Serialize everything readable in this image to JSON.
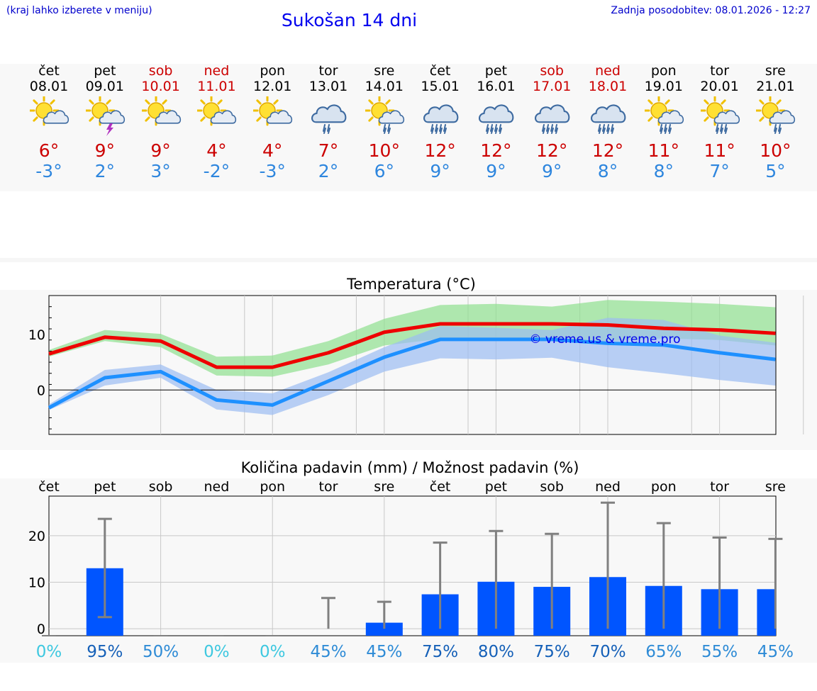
{
  "header": {
    "hint": "(kraj lahko izberete v meniju)",
    "title": "Sukošan 14 dni",
    "updated": "Zadnja posodobitev: 08.01.2026 - 12:27"
  },
  "forecast": [
    {
      "day": "čet",
      "date": "08.01",
      "weekend": false,
      "icon": "sun-cloud-icon",
      "max": "6°",
      "min": "-3°"
    },
    {
      "day": "pet",
      "date": "09.01",
      "weekend": false,
      "icon": "sun-cloud-thunder-icon",
      "max": "9°",
      "min": "2°"
    },
    {
      "day": "sob",
      "date": "10.01",
      "weekend": true,
      "icon": "sun-cloud-icon",
      "max": "9°",
      "min": "3°"
    },
    {
      "day": "ned",
      "date": "11.01",
      "weekend": true,
      "icon": "sun-cloud-icon",
      "max": "4°",
      "min": "-2°"
    },
    {
      "day": "pon",
      "date": "12.01",
      "weekend": false,
      "icon": "sun-cloud-icon",
      "max": "4°",
      "min": "-3°"
    },
    {
      "day": "tor",
      "date": "13.01",
      "weekend": false,
      "icon": "cloud-rain-icon",
      "max": "7°",
      "min": "2°"
    },
    {
      "day": "sre",
      "date": "14.01",
      "weekend": false,
      "icon": "sun-cloud-rain-icon",
      "max": "10°",
      "min": "6°"
    },
    {
      "day": "čet",
      "date": "15.01",
      "weekend": false,
      "icon": "cloud-heavy-rain-icon",
      "max": "12°",
      "min": "9°"
    },
    {
      "day": "pet",
      "date": "16.01",
      "weekend": false,
      "icon": "cloud-heavy-rain-icon",
      "max": "12°",
      "min": "9°"
    },
    {
      "day": "sob",
      "date": "17.01",
      "weekend": true,
      "icon": "cloud-heavy-rain-icon",
      "max": "12°",
      "min": "9°"
    },
    {
      "day": "ned",
      "date": "18.01",
      "weekend": true,
      "icon": "cloud-heavy-rain-icon",
      "max": "12°",
      "min": "8°"
    },
    {
      "day": "pon",
      "date": "19.01",
      "weekend": false,
      "icon": "sun-cloud-heavy-rain-icon",
      "max": "11°",
      "min": "8°"
    },
    {
      "day": "tor",
      "date": "20.01",
      "weekend": false,
      "icon": "sun-cloud-heavy-rain-icon",
      "max": "11°",
      "min": "7°"
    },
    {
      "day": "sre",
      "date": "21.01",
      "weekend": false,
      "icon": "sun-cloud-rain-icon",
      "max": "10°",
      "min": "5°"
    }
  ],
  "chart_data": [
    {
      "type": "line",
      "title": "Temperatura (°C)",
      "xlabel": "",
      "ylabel": "",
      "ylim": [
        -8,
        17
      ],
      "yticks": [
        0,
        10
      ],
      "x": [
        0,
        1,
        2,
        3,
        4,
        5,
        6,
        7,
        8,
        9,
        10,
        11,
        12,
        13
      ],
      "watermark": "© vreme.us & vreme.pro",
      "series": [
        {
          "name": "max",
          "color": "#ee0000",
          "values": [
            6.5,
            9.5,
            8.8,
            4.1,
            4.1,
            6.7,
            10.4,
            11.9,
            11.9,
            11.9,
            11.7,
            11.1,
            10.8,
            10.2
          ]
        },
        {
          "name": "min",
          "color": "#1e90ff",
          "values": [
            -3.2,
            2.2,
            3.3,
            -1.8,
            -2.7,
            1.6,
            5.9,
            9.1,
            9.1,
            9.1,
            8.4,
            8.1,
            6.7,
            5.5
          ]
        }
      ],
      "bands": [
        {
          "name": "max-range",
          "color": "#8ee08e",
          "low": [
            6.0,
            8.8,
            7.7,
            2.6,
            2.4,
            4.6,
            8.0,
            9.2,
            9.0,
            9.2,
            8.8,
            9.3,
            9.0,
            8.0
          ],
          "high": [
            7.2,
            10.8,
            10.1,
            6.0,
            6.2,
            8.8,
            12.8,
            15.3,
            15.5,
            15.0,
            16.2,
            15.9,
            15.5,
            14.9
          ]
        },
        {
          "name": "min-range",
          "color": "#9bbcf2",
          "low": [
            -3.6,
            0.8,
            2.2,
            -3.5,
            -4.5,
            -0.9,
            3.3,
            5.7,
            5.5,
            5.8,
            4.1,
            3.0,
            1.8,
            0.8
          ],
          "high": [
            -2.6,
            3.6,
            4.6,
            0.0,
            -0.6,
            3.2,
            7.7,
            11.5,
            11.2,
            10.8,
            13.0,
            12.6,
            9.8,
            8.5
          ]
        }
      ]
    },
    {
      "type": "bar",
      "title": "Količina padavin (mm) / Možnost padavin (%)",
      "xlabel": "",
      "ylabel": "",
      "ylim": [
        -1.5,
        28.5
      ],
      "yticks": [
        0,
        10,
        20
      ],
      "categories": [
        "čet",
        "pet",
        "sob",
        "ned",
        "pon",
        "tor",
        "sre",
        "čet",
        "pet",
        "sob",
        "ned",
        "pon",
        "tor",
        "sre"
      ],
      "values": [
        0,
        13.0,
        0,
        0,
        0,
        0,
        1.3,
        7.4,
        10.1,
        9.0,
        11.1,
        9.2,
        8.5,
        8.5
      ],
      "error_low": [
        0,
        2.5,
        0,
        0,
        0,
        0,
        0,
        0,
        0,
        0,
        0,
        0,
        0,
        0
      ],
      "error_high": [
        0,
        23.6,
        0,
        0,
        0,
        6.6,
        5.8,
        18.5,
        21.0,
        20.4,
        27.1,
        22.7,
        19.6,
        19.3
      ],
      "probabilities": [
        "0%",
        "95%",
        "50%",
        "0%",
        "0%",
        "45%",
        "45%",
        "75%",
        "80%",
        "75%",
        "70%",
        "65%",
        "55%",
        "45%"
      ],
      "probability_values": [
        0,
        95,
        50,
        0,
        0,
        45,
        45,
        75,
        80,
        75,
        70,
        65,
        55,
        45
      ],
      "bar_color": "#0055ff"
    }
  ]
}
